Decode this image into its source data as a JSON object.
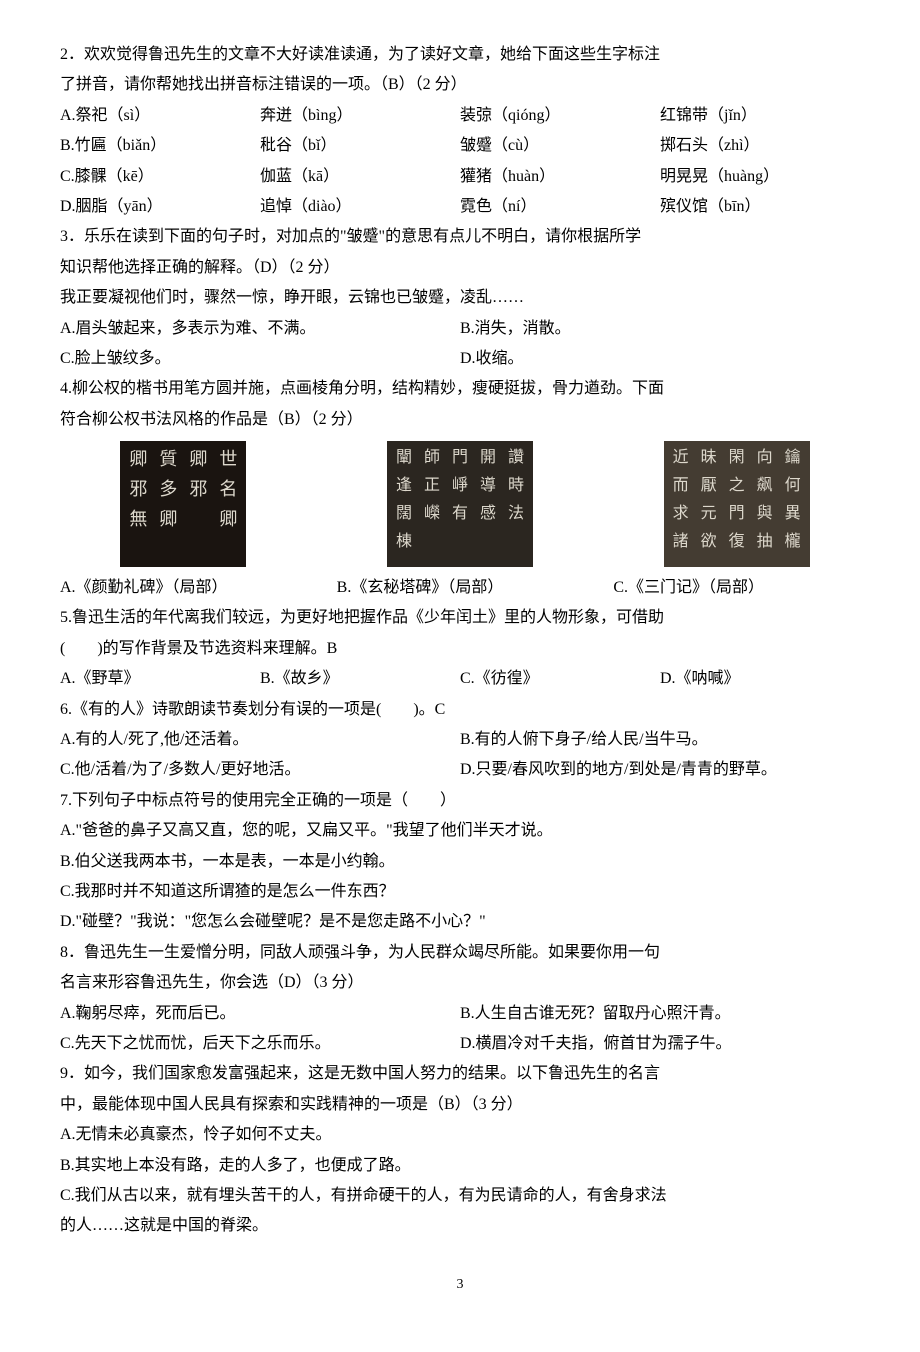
{
  "q2": {
    "stem1": "2．欢欢觉得鲁迅先生的文章不大好读准读通，为了读好文章，她给下面这些生字标注",
    "stem2": "了拼音，请你帮她找出拼音标注错误的一项。（B）（2 分）",
    "A": [
      "A.祭祀（sì）",
      "奔迸（bìng）",
      "装弶（qióng）",
      "红锦带（jǐn）"
    ],
    "B": [
      "B.竹匾（biǎn）",
      "秕谷（bǐ）",
      "皱蹙（cù）",
      "掷石头（zhì）"
    ],
    "C": [
      "C.膝髁（kē）",
      "伽蓝（kā）",
      "獾猪（huàn）",
      "明晃晃（huàng）"
    ],
    "D": [
      "D.胭脂（yān）",
      "追悼（diào）",
      "霓色（ní）",
      "殡仪馆（bīn）"
    ]
  },
  "q3": {
    "stem1": "3．乐乐在读到下面的句子时，对加点的\"皱蹙\"的意思有点儿不明白，请你根据所学",
    "stem2": "知识帮他选择正确的解释。（D）（2 分）",
    "quote": "我正要凝视他们时，骤然一惊，睁开眼，云锦也已皱蹙，凌乱……",
    "A": "A.眉头皱起来，多表示为难、不满。",
    "B": "B.消失，消散。",
    "C": "C.脸上皱纹多。",
    "D": "D.收缩。"
  },
  "q4": {
    "stem1": "4.柳公权的楷书用笔方圆并施，点画棱角分明，结构精妙，瘦硬挺拔，骨力遒劲。下面",
    "stem2": "符合柳公权书法风格的作品是（B）（2 分）",
    "capA": "A.《颜勤礼碑》（局部）",
    "capB": "B.《玄秘塔碑》（局部）",
    "capC": "C.《三门记》（局部）",
    "imgA_chars": [
      "卿",
      "質",
      "卿",
      "世",
      "邪",
      "多",
      "邪",
      "名",
      "無",
      "卿",
      "",
      "卿",
      "",
      "",
      "",
      ""
    ],
    "imgB_chars": [
      "闡",
      "師",
      "門",
      "開",
      "讚",
      "逢",
      "正",
      "崢",
      "導",
      "時",
      "闊",
      "嶸",
      "有",
      "感",
      "法",
      "棟"
    ],
    "imgC_chars": [
      "近",
      "昧",
      "閑",
      "向",
      "鑰",
      "而",
      "厭",
      "之",
      "飙",
      "何",
      "求",
      "元",
      "門",
      "與",
      "異",
      "諸",
      "欲",
      "復",
      "抽",
      "櫳"
    ]
  },
  "q5": {
    "stem1": "5.鲁迅生活的年代离我们较远，为更好地把握作品《少年闰土》里的人物形象，可借助",
    "stem2": "(　　)的写作背景及节选资料来理解。B",
    "A": "A.《野草》",
    "B": "B.《故乡》",
    "C": "C.《彷徨》",
    "D": "D.《呐喊》"
  },
  "q6": {
    "stem": "6.《有的人》诗歌朗读节奏划分有误的一项是(　　)。C",
    "A": "A.有的人/死了,他/还活着。",
    "B": "B.有的人俯下身子/给人民/当牛马。",
    "C": "C.他/活着/为了/多数人/更好地活。",
    "D": "D.只要/春风吹到的地方/到处是/青青的野草。"
  },
  "q7": {
    "stem": "7.下列句子中标点符号的使用完全正确的一项是（　　）",
    "A": "A.\"爸爸的鼻子又高又直，您的呢，又扁又平。\"我望了他们半天才说。",
    "B": "B.伯父送我两本书，一本是表，一本是小约翰。",
    "C": "C.我那时并不知道这所谓猹的是怎么一件东西？",
    "D": "D.\"碰壁？\"我说：\"您怎么会碰壁呢？是不是您走路不小心？\""
  },
  "q8": {
    "stem1": "8．鲁迅先生一生爱憎分明，同敌人顽强斗争，为人民群众竭尽所能。如果要你用一句",
    "stem2": "名言来形容鲁迅先生，你会选（D）（3 分）",
    "A": "A.鞠躬尽瘁，死而后已。",
    "B": "B.人生自古谁无死？留取丹心照汗青。",
    "C": "C.先天下之忧而忧，后天下之乐而乐。",
    "D": "D.横眉冷对千夫指，俯首甘为孺子牛。"
  },
  "q9": {
    "stem1": "9．如今，我们国家愈发富强起来，这是无数中国人努力的结果。以下鲁迅先生的名言",
    "stem2": "中，最能体现中国人民具有探索和实践精神的一项是（B）（3 分）",
    "A": "A.无情未必真豪杰，怜子如何不丈夫。",
    "B": "B.其实地上本没有路，走的人多了，也便成了路。",
    "C1": "C.我们从古以来，就有埋头苦干的人，有拼命硬干的人，有为民请命的人，有舍身求法",
    "C2": "的人……这就是中国的脊梁。"
  },
  "page_num": "3"
}
